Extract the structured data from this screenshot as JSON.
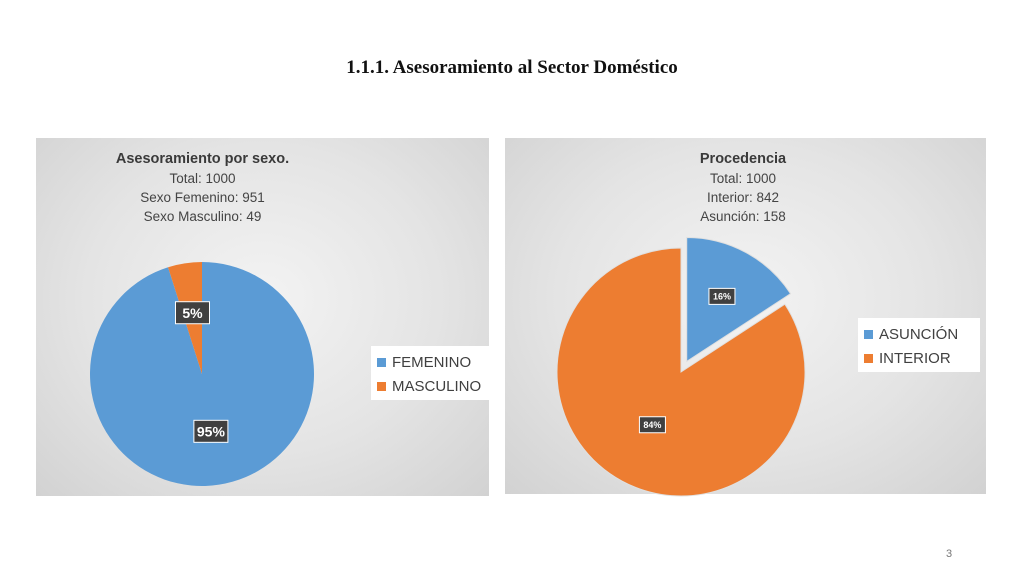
{
  "page": {
    "title": "1.1.1. Asesoramiento al Sector Doméstico",
    "page_number": "3"
  },
  "colors": {
    "blue": "#5b9bd5",
    "orange": "#ed7d31",
    "label_bg": "#404040"
  },
  "chart_data": [
    {
      "type": "pie",
      "title": "Asesoramiento por sexo.",
      "subtitle_lines": [
        "Total: 1000",
        "Sexo Femenino: 951",
        "Sexo Masculino: 49"
      ],
      "categories": [
        "FEMENINO",
        "MASCULINO"
      ],
      "values": [
        951,
        49
      ],
      "data_labels": [
        "95%",
        "5%"
      ],
      "colors": [
        "#5b9bd5",
        "#ed7d31"
      ],
      "legend": "right"
    },
    {
      "type": "pie",
      "title": "Procedencia",
      "subtitle_lines": [
        "Total: 1000",
        "Interior: 842",
        "Asunción: 158"
      ],
      "categories": [
        "ASUNCIÓN",
        "INTERIOR"
      ],
      "values": [
        158,
        842
      ],
      "data_labels": [
        "16%",
        "84%"
      ],
      "colors": [
        "#5b9bd5",
        "#ed7d31"
      ],
      "exploded": [
        "ASUNCIÓN"
      ],
      "legend": "right"
    }
  ]
}
